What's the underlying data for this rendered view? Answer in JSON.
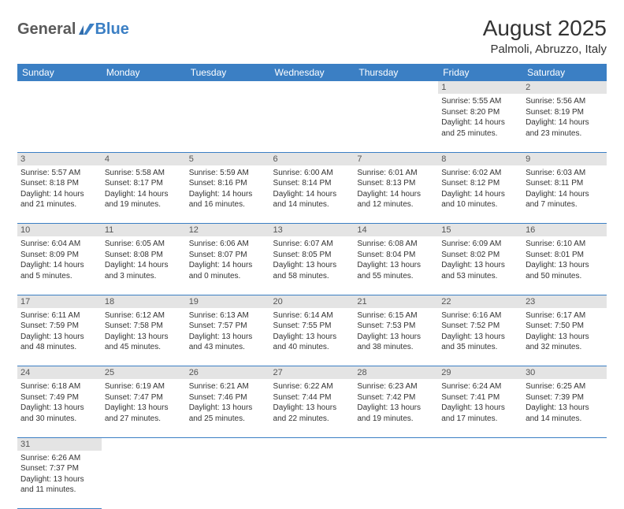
{
  "logo": {
    "text1": "General",
    "text2": "Blue"
  },
  "title": "August 2025",
  "location": "Palmoli, Abruzzo, Italy",
  "colors": {
    "header_bg": "#3b7fc4",
    "header_text": "#ffffff",
    "daynum_bg": "#e4e4e4",
    "daynum_text": "#555555",
    "cell_text": "#333333",
    "row_divider": "#3b7fc4",
    "page_bg": "#ffffff"
  },
  "typography": {
    "title_fontsize": 28,
    "location_fontsize": 15,
    "header_fontsize": 12,
    "daynum_fontsize": 11,
    "cell_fontsize": 10
  },
  "weekdays": [
    "Sunday",
    "Monday",
    "Tuesday",
    "Wednesday",
    "Thursday",
    "Friday",
    "Saturday"
  ],
  "weeks": [
    [
      null,
      null,
      null,
      null,
      null,
      {
        "n": "1",
        "sr": "Sunrise: 5:55 AM",
        "ss": "Sunset: 8:20 PM",
        "dl": "Daylight: 14 hours and 25 minutes."
      },
      {
        "n": "2",
        "sr": "Sunrise: 5:56 AM",
        "ss": "Sunset: 8:19 PM",
        "dl": "Daylight: 14 hours and 23 minutes."
      }
    ],
    [
      {
        "n": "3",
        "sr": "Sunrise: 5:57 AM",
        "ss": "Sunset: 8:18 PM",
        "dl": "Daylight: 14 hours and 21 minutes."
      },
      {
        "n": "4",
        "sr": "Sunrise: 5:58 AM",
        "ss": "Sunset: 8:17 PM",
        "dl": "Daylight: 14 hours and 19 minutes."
      },
      {
        "n": "5",
        "sr": "Sunrise: 5:59 AM",
        "ss": "Sunset: 8:16 PM",
        "dl": "Daylight: 14 hours and 16 minutes."
      },
      {
        "n": "6",
        "sr": "Sunrise: 6:00 AM",
        "ss": "Sunset: 8:14 PM",
        "dl": "Daylight: 14 hours and 14 minutes."
      },
      {
        "n": "7",
        "sr": "Sunrise: 6:01 AM",
        "ss": "Sunset: 8:13 PM",
        "dl": "Daylight: 14 hours and 12 minutes."
      },
      {
        "n": "8",
        "sr": "Sunrise: 6:02 AM",
        "ss": "Sunset: 8:12 PM",
        "dl": "Daylight: 14 hours and 10 minutes."
      },
      {
        "n": "9",
        "sr": "Sunrise: 6:03 AM",
        "ss": "Sunset: 8:11 PM",
        "dl": "Daylight: 14 hours and 7 minutes."
      }
    ],
    [
      {
        "n": "10",
        "sr": "Sunrise: 6:04 AM",
        "ss": "Sunset: 8:09 PM",
        "dl": "Daylight: 14 hours and 5 minutes."
      },
      {
        "n": "11",
        "sr": "Sunrise: 6:05 AM",
        "ss": "Sunset: 8:08 PM",
        "dl": "Daylight: 14 hours and 3 minutes."
      },
      {
        "n": "12",
        "sr": "Sunrise: 6:06 AM",
        "ss": "Sunset: 8:07 PM",
        "dl": "Daylight: 14 hours and 0 minutes."
      },
      {
        "n": "13",
        "sr": "Sunrise: 6:07 AM",
        "ss": "Sunset: 8:05 PM",
        "dl": "Daylight: 13 hours and 58 minutes."
      },
      {
        "n": "14",
        "sr": "Sunrise: 6:08 AM",
        "ss": "Sunset: 8:04 PM",
        "dl": "Daylight: 13 hours and 55 minutes."
      },
      {
        "n": "15",
        "sr": "Sunrise: 6:09 AM",
        "ss": "Sunset: 8:02 PM",
        "dl": "Daylight: 13 hours and 53 minutes."
      },
      {
        "n": "16",
        "sr": "Sunrise: 6:10 AM",
        "ss": "Sunset: 8:01 PM",
        "dl": "Daylight: 13 hours and 50 minutes."
      }
    ],
    [
      {
        "n": "17",
        "sr": "Sunrise: 6:11 AM",
        "ss": "Sunset: 7:59 PM",
        "dl": "Daylight: 13 hours and 48 minutes."
      },
      {
        "n": "18",
        "sr": "Sunrise: 6:12 AM",
        "ss": "Sunset: 7:58 PM",
        "dl": "Daylight: 13 hours and 45 minutes."
      },
      {
        "n": "19",
        "sr": "Sunrise: 6:13 AM",
        "ss": "Sunset: 7:57 PM",
        "dl": "Daylight: 13 hours and 43 minutes."
      },
      {
        "n": "20",
        "sr": "Sunrise: 6:14 AM",
        "ss": "Sunset: 7:55 PM",
        "dl": "Daylight: 13 hours and 40 minutes."
      },
      {
        "n": "21",
        "sr": "Sunrise: 6:15 AM",
        "ss": "Sunset: 7:53 PM",
        "dl": "Daylight: 13 hours and 38 minutes."
      },
      {
        "n": "22",
        "sr": "Sunrise: 6:16 AM",
        "ss": "Sunset: 7:52 PM",
        "dl": "Daylight: 13 hours and 35 minutes."
      },
      {
        "n": "23",
        "sr": "Sunrise: 6:17 AM",
        "ss": "Sunset: 7:50 PM",
        "dl": "Daylight: 13 hours and 32 minutes."
      }
    ],
    [
      {
        "n": "24",
        "sr": "Sunrise: 6:18 AM",
        "ss": "Sunset: 7:49 PM",
        "dl": "Daylight: 13 hours and 30 minutes."
      },
      {
        "n": "25",
        "sr": "Sunrise: 6:19 AM",
        "ss": "Sunset: 7:47 PM",
        "dl": "Daylight: 13 hours and 27 minutes."
      },
      {
        "n": "26",
        "sr": "Sunrise: 6:21 AM",
        "ss": "Sunset: 7:46 PM",
        "dl": "Daylight: 13 hours and 25 minutes."
      },
      {
        "n": "27",
        "sr": "Sunrise: 6:22 AM",
        "ss": "Sunset: 7:44 PM",
        "dl": "Daylight: 13 hours and 22 minutes."
      },
      {
        "n": "28",
        "sr": "Sunrise: 6:23 AM",
        "ss": "Sunset: 7:42 PM",
        "dl": "Daylight: 13 hours and 19 minutes."
      },
      {
        "n": "29",
        "sr": "Sunrise: 6:24 AM",
        "ss": "Sunset: 7:41 PM",
        "dl": "Daylight: 13 hours and 17 minutes."
      },
      {
        "n": "30",
        "sr": "Sunrise: 6:25 AM",
        "ss": "Sunset: 7:39 PM",
        "dl": "Daylight: 13 hours and 14 minutes."
      }
    ],
    [
      {
        "n": "31",
        "sr": "Sunrise: 6:26 AM",
        "ss": "Sunset: 7:37 PM",
        "dl": "Daylight: 13 hours and 11 minutes."
      },
      null,
      null,
      null,
      null,
      null,
      null
    ]
  ]
}
